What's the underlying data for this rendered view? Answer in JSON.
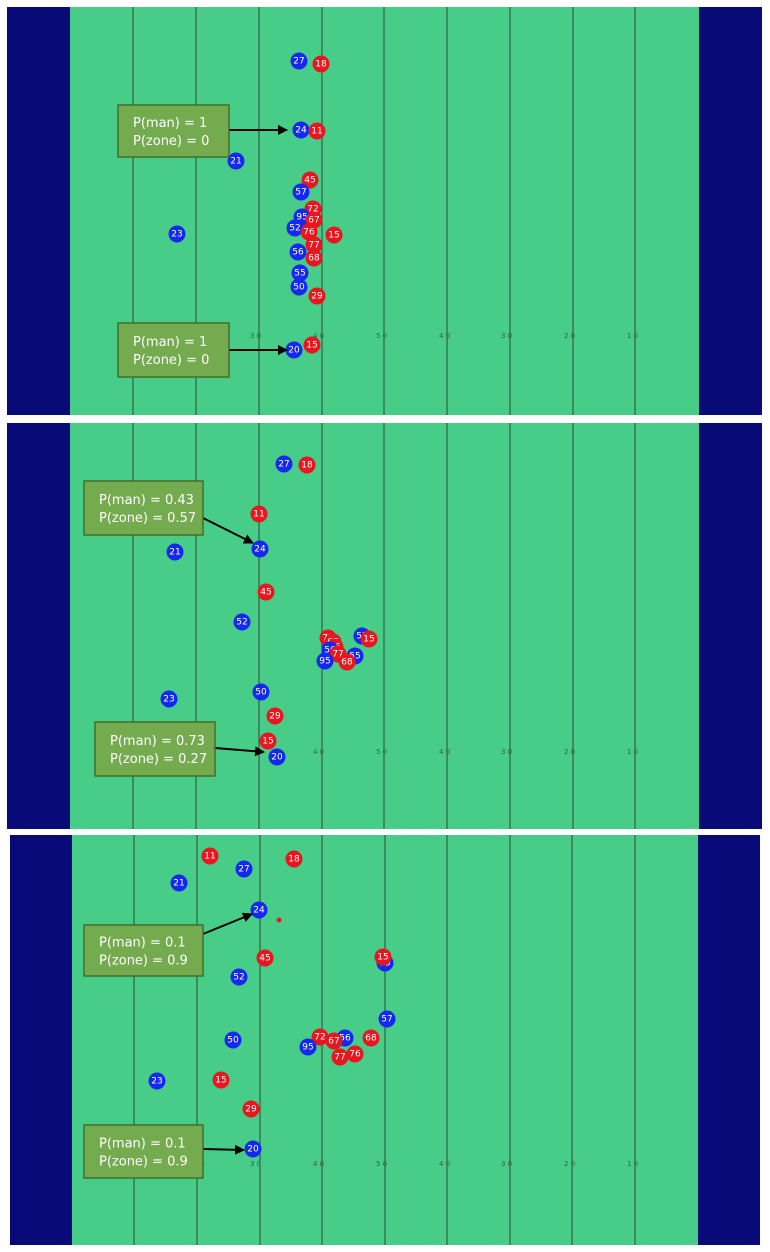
{
  "colors": {
    "field": "#47cd87",
    "endzone": "#080a78",
    "yard_line": "#2e4a3a",
    "offense": "#e8161f",
    "defense": "#1428f0",
    "box_fill": "#74ab4f",
    "box_border": "#466c2c",
    "arrow": "#000000"
  },
  "panels": [
    {
      "id": "frame-1",
      "yard_labels": [
        "3 0",
        "4 0",
        "5 0",
        "4 0",
        "3 0",
        "2 0",
        "1 0"
      ],
      "annotations": [
        {
          "target": "24",
          "lines": [
            "P(man) = 1",
            "P(zone) = 0"
          ]
        },
        {
          "target": "20",
          "lines": [
            "P(man) = 1",
            "P(zone) = 0"
          ]
        }
      ]
    },
    {
      "id": "frame-2",
      "yard_labels": [
        "4 0",
        "5 0",
        "4 0",
        "3 0",
        "2 0",
        "1 0"
      ],
      "annotations": [
        {
          "target": "24",
          "lines": [
            "P(man) = 0.43",
            "P(zone) = 0.57"
          ]
        },
        {
          "target": "20",
          "lines": [
            "P(man) = 0.73",
            "P(zone) = 0.27"
          ]
        }
      ]
    },
    {
      "id": "frame-3",
      "yard_labels": [
        "0",
        "3 0",
        "4 0",
        "5 0",
        "4 0",
        "3 0",
        "2 0",
        "1 0"
      ],
      "annotations": [
        {
          "target": "24",
          "lines": [
            "P(man) = 0.1",
            "P(zone) = 0.9"
          ]
        },
        {
          "target": "20",
          "lines": [
            "P(man) = 0.1",
            "P(zone) = 0.9"
          ]
        }
      ]
    }
  ]
}
